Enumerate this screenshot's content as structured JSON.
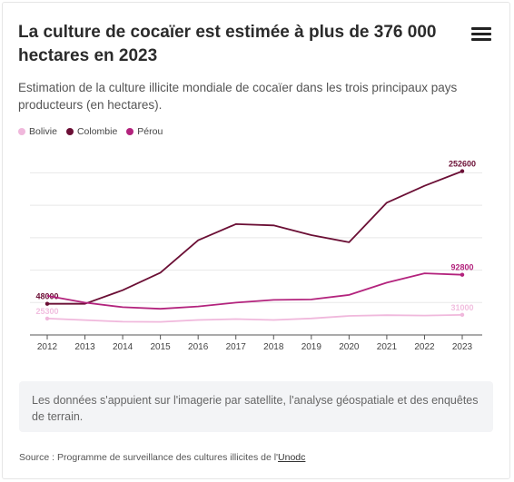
{
  "header": {
    "title": "La culture de cocaïer est estimée à plus de 376 000 hectares en 2023",
    "subtitle": "Estimation de la culture illicite mondiale de cocaïer dans les trois principaux pays producteurs (en hectares).",
    "menu_icon": "hamburger-menu-icon"
  },
  "legend": {
    "items": [
      {
        "label": "Bolivie",
        "color": "#f0b8dc"
      },
      {
        "label": "Colombie",
        "color": "#6b0f35"
      },
      {
        "label": "Pérou",
        "color": "#b3237d"
      }
    ]
  },
  "note": "Les données s'appuient sur l'imagerie par satellite, l'analyse géospatiale et des enquêtes de terrain.",
  "source": {
    "prefix": "Source : Programme de surveillance des cultures illicites de l'",
    "link": "Unodc"
  },
  "chart_data": {
    "type": "line",
    "x": [
      "2012",
      "2013",
      "2014",
      "2015",
      "2016",
      "2017",
      "2018",
      "2019",
      "2020",
      "2021",
      "2022",
      "2023"
    ],
    "ylim": [
      0,
      280000
    ],
    "grid": true,
    "legend_position": "top-left",
    "series": [
      {
        "name": "Bolivie",
        "color": "#f0b8dc",
        "values": [
          25300,
          23000,
          20400,
          20200,
          23100,
          24500,
          23100,
          25500,
          29400,
          30500,
          29900,
          31000
        ],
        "labels": {
          "0": "25300",
          "11": "31000"
        }
      },
      {
        "name": "Colombie",
        "color": "#6b0f35",
        "values": [
          48000,
          48000,
          69000,
          96000,
          146000,
          171000,
          169000,
          154000,
          143000,
          204000,
          230000,
          252600
        ],
        "labels": {
          "0": "48000",
          "11": "252600"
        }
      },
      {
        "name": "Pérou",
        "color": "#b3237d",
        "values": [
          60400,
          49800,
          42900,
          40300,
          43900,
          49900,
          54100,
          54700,
          61800,
          80700,
          95000,
          92800
        ],
        "labels": {
          "11": "92800"
        }
      }
    ]
  }
}
